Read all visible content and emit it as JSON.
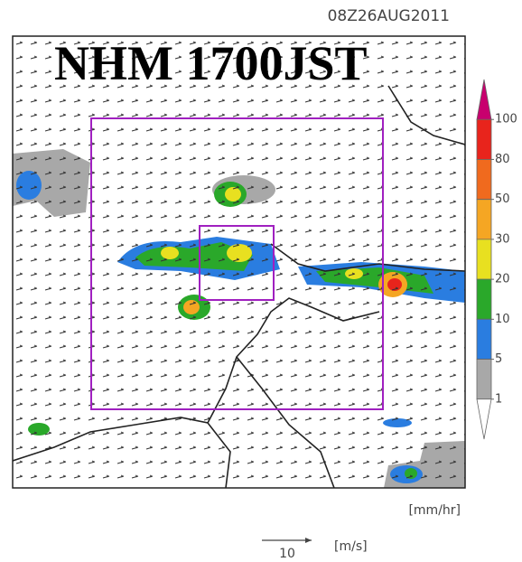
{
  "header": {
    "timestamp": "08Z26AUG2011",
    "title": "NHM 1700JST"
  },
  "colorbar": {
    "unit": "[mm/hr]",
    "levels": [
      100,
      80,
      50,
      30,
      20,
      10,
      5,
      1
    ],
    "colors": [
      "#c8006e",
      "#e8241c",
      "#f06a1e",
      "#f5a623",
      "#e8e020",
      "#2aa82a",
      "#2a7de0",
      "#a8a8a8",
      "#ffffff"
    ]
  },
  "wind_reference": {
    "speed": "10",
    "unit": "[m/s]"
  }
}
